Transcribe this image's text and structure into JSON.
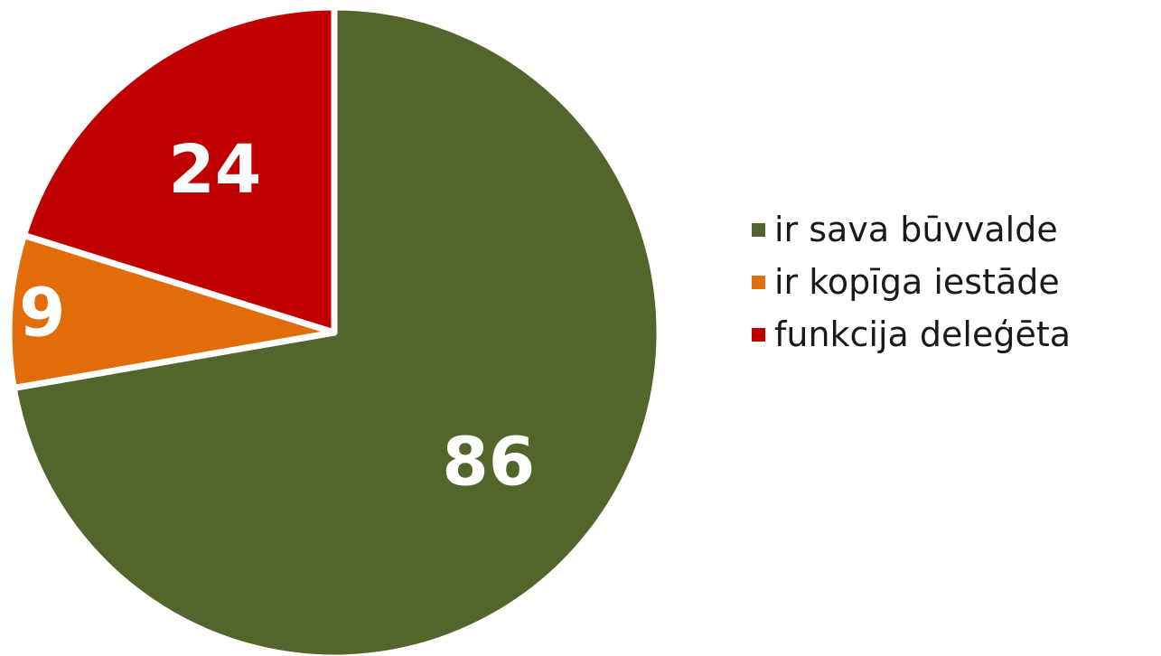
{
  "chart_data": {
    "type": "pie",
    "categories": [
      "ir sava būvvalde",
      "ir kopīga iestāde",
      "funkcija deleģēta"
    ],
    "values": [
      86,
      9,
      24
    ],
    "data_labels": [
      "86",
      "9",
      "24"
    ],
    "colors": [
      "#52652b",
      "#e36c0a",
      "#c00000"
    ],
    "title": "",
    "legend_position": "right"
  }
}
